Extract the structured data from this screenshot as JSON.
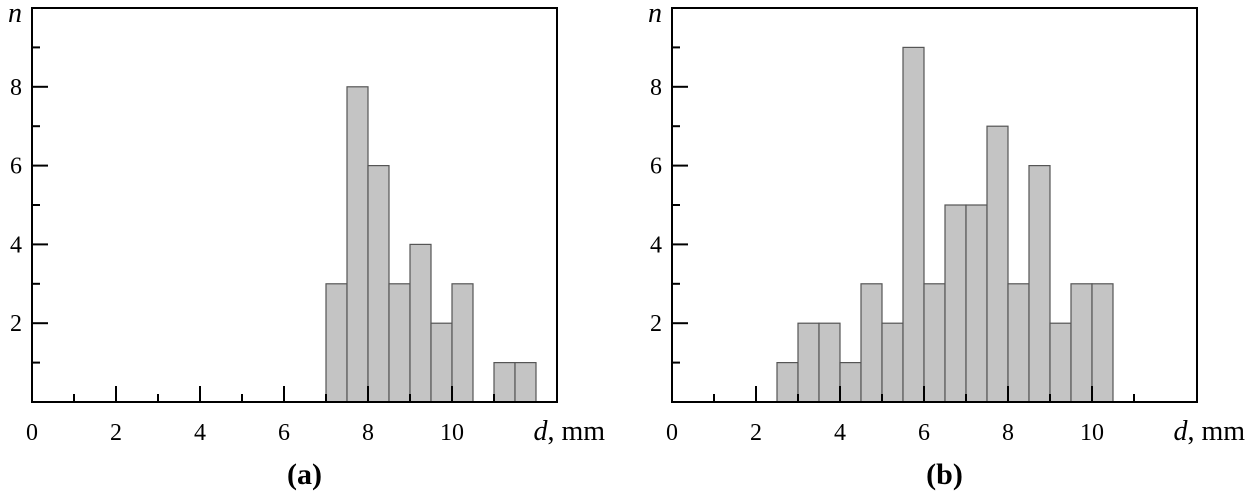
{
  "chart_data": [
    {
      "type": "bar",
      "panel_label": "(a)",
      "ylabel": "n",
      "xlabel_var": "d",
      "xlabel_unit": ", mm",
      "xlim": [
        0,
        12.5
      ],
      "ylim": [
        0,
        10
      ],
      "bin_width": 0.5,
      "x_major_ticks": [
        0,
        2,
        4,
        6,
        8,
        10
      ],
      "x_minor_ticks": [
        1,
        3,
        5,
        7,
        9,
        11
      ],
      "y_major_ticks": [
        2,
        4,
        6,
        8
      ],
      "y_minor_ticks": [
        1,
        3,
        5,
        7,
        9
      ],
      "bin_starts": [
        7.0,
        7.5,
        8.0,
        8.5,
        9.0,
        9.5,
        10.0,
        11.0,
        11.5
      ],
      "values": [
        3,
        8,
        6,
        3,
        4,
        2,
        3,
        1,
        1
      ],
      "bar_color": "#c4c4c4",
      "grid": false
    },
    {
      "type": "bar",
      "panel_label": "(b)",
      "ylabel": "n",
      "xlabel_var": "d",
      "xlabel_unit": ", mm",
      "xlim": [
        0,
        12.5
      ],
      "ylim": [
        0,
        10
      ],
      "bin_width": 0.5,
      "x_major_ticks": [
        0,
        2,
        4,
        6,
        8,
        10
      ],
      "x_minor_ticks": [
        1,
        3,
        5,
        7,
        9,
        11
      ],
      "y_major_ticks": [
        2,
        4,
        6,
        8
      ],
      "y_minor_ticks": [
        1,
        3,
        5,
        7,
        9
      ],
      "bin_starts": [
        2.5,
        3.0,
        3.5,
        4.0,
        4.5,
        5.0,
        5.5,
        6.0,
        6.5,
        7.0,
        7.5,
        8.0,
        8.5,
        9.0,
        9.5,
        10.0
      ],
      "values": [
        1,
        2,
        2,
        1,
        3,
        2,
        9,
        3,
        5,
        5,
        7,
        3,
        6,
        2,
        3,
        3
      ],
      "bar_color": "#c4c4c4",
      "grid": false
    }
  ]
}
